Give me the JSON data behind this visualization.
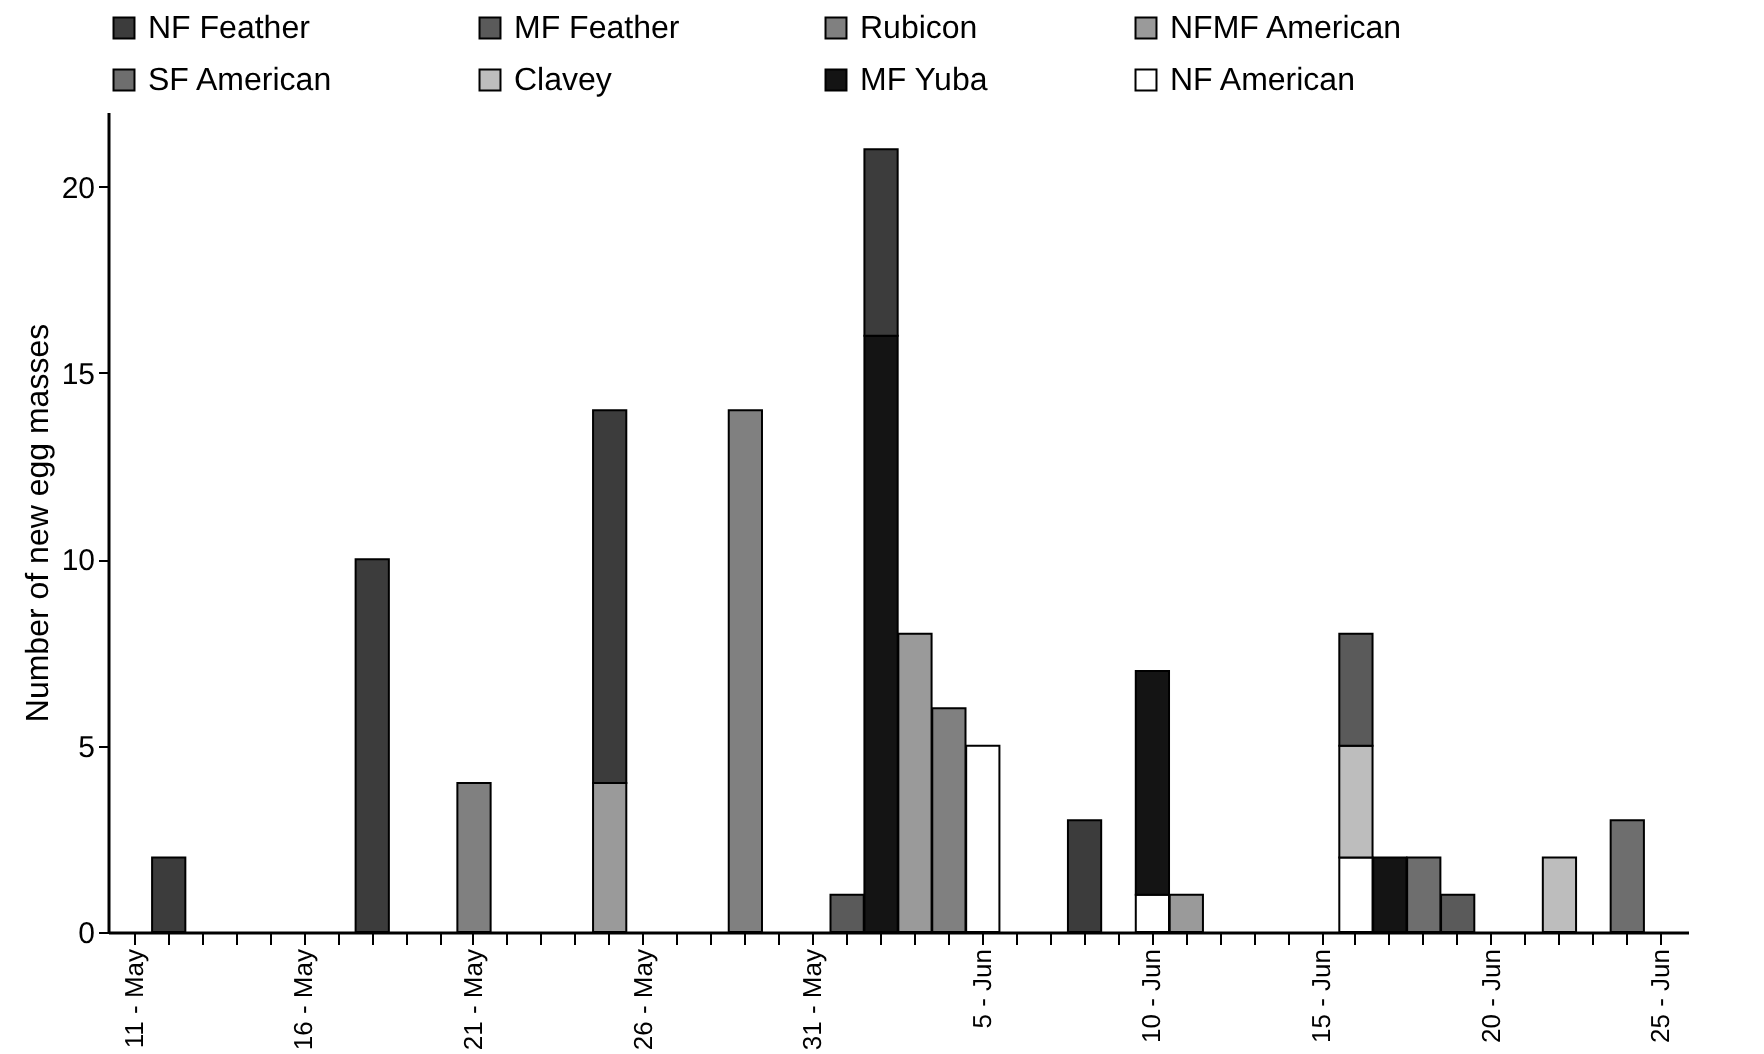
{
  "chart_data": {
    "type": "bar",
    "stacked": true,
    "ylabel": "Number of new egg masses",
    "categories": [
      "11 - May",
      null,
      null,
      null,
      null,
      "16 - May",
      null,
      null,
      null,
      null,
      "21 - May",
      null,
      null,
      null,
      null,
      "26 - May",
      null,
      null,
      null,
      null,
      "31 - May",
      null,
      null,
      null,
      null,
      "5 - Jun",
      null,
      null,
      null,
      null,
      "10 - Jun",
      null,
      null,
      null,
      null,
      "15 - Jun",
      null,
      null,
      null,
      null,
      "20 - Jun",
      null,
      null,
      null,
      null,
      "25 - Jun"
    ],
    "ylim": [
      0,
      22
    ],
    "yticks": [
      0,
      5,
      10,
      15,
      20
    ],
    "legend": "top",
    "series": [
      {
        "name": "NF American",
        "color": "#ffffff",
        "values": [
          null,
          null,
          null,
          null,
          null,
          null,
          null,
          null,
          null,
          null,
          null,
          null,
          null,
          null,
          null,
          null,
          null,
          null,
          null,
          null,
          null,
          null,
          null,
          null,
          null,
          5,
          null,
          null,
          null,
          null,
          1,
          null,
          null,
          null,
          null,
          null,
          2,
          null,
          null,
          null,
          null,
          null,
          null,
          null,
          null,
          null
        ]
      },
      {
        "name": "MF Yuba",
        "color": "#141414",
        "values": [
          null,
          null,
          null,
          null,
          null,
          null,
          null,
          null,
          null,
          null,
          null,
          null,
          null,
          null,
          null,
          null,
          null,
          null,
          null,
          null,
          null,
          null,
          16,
          null,
          null,
          null,
          null,
          null,
          null,
          null,
          6,
          null,
          null,
          null,
          null,
          null,
          null,
          2,
          null,
          null,
          null,
          null,
          null,
          null,
          null,
          null
        ]
      },
      {
        "name": "Clavey",
        "color": "#bdbdbd",
        "values": [
          null,
          null,
          null,
          null,
          null,
          null,
          null,
          null,
          null,
          null,
          null,
          null,
          null,
          null,
          null,
          null,
          null,
          null,
          null,
          null,
          null,
          null,
          null,
          null,
          null,
          null,
          null,
          null,
          null,
          null,
          null,
          null,
          null,
          null,
          null,
          null,
          3,
          null,
          null,
          null,
          null,
          null,
          2,
          null,
          null,
          null
        ]
      },
      {
        "name": "SF American",
        "color": "#6e6e6e",
        "values": [
          null,
          null,
          null,
          null,
          null,
          null,
          null,
          null,
          null,
          null,
          null,
          null,
          null,
          null,
          null,
          null,
          null,
          null,
          null,
          null,
          null,
          null,
          null,
          null,
          null,
          null,
          null,
          null,
          null,
          null,
          null,
          null,
          null,
          null,
          null,
          null,
          null,
          null,
          2,
          null,
          null,
          null,
          null,
          null,
          3,
          null
        ]
      },
      {
        "name": "NFMF American",
        "color": "#9a9a9a",
        "values": [
          null,
          null,
          null,
          null,
          null,
          null,
          null,
          null,
          null,
          null,
          null,
          null,
          null,
          null,
          4,
          null,
          null,
          null,
          null,
          null,
          null,
          null,
          null,
          8,
          null,
          null,
          null,
          null,
          null,
          null,
          null,
          1,
          null,
          null,
          null,
          null,
          null,
          null,
          null,
          null,
          null,
          null,
          null,
          null,
          null,
          null
        ]
      },
      {
        "name": "Rubicon",
        "color": "#808080",
        "values": [
          null,
          null,
          null,
          null,
          null,
          null,
          null,
          null,
          null,
          null,
          4,
          null,
          null,
          null,
          null,
          null,
          null,
          null,
          14,
          null,
          null,
          null,
          null,
          null,
          6,
          null,
          null,
          null,
          null,
          null,
          null,
          null,
          null,
          null,
          null,
          null,
          null,
          null,
          null,
          null,
          null,
          null,
          null,
          null,
          null,
          null
        ]
      },
      {
        "name": "MF Feather",
        "color": "#5a5a5a",
        "values": [
          null,
          null,
          null,
          null,
          null,
          null,
          null,
          null,
          null,
          null,
          null,
          null,
          null,
          null,
          null,
          null,
          null,
          null,
          null,
          null,
          null,
          1,
          null,
          null,
          null,
          null,
          null,
          null,
          null,
          null,
          null,
          null,
          null,
          null,
          null,
          null,
          3,
          null,
          null,
          1,
          null,
          null,
          null,
          null,
          null,
          null
        ]
      },
      {
        "name": "NF Feather",
        "color": "#3c3c3c",
        "values": [
          null,
          2,
          null,
          null,
          null,
          null,
          null,
          10,
          null,
          null,
          null,
          null,
          null,
          null,
          10,
          null,
          null,
          null,
          null,
          null,
          null,
          null,
          5,
          null,
          null,
          null,
          null,
          null,
          3,
          null,
          null,
          null,
          null,
          null,
          null,
          null,
          null,
          null,
          null,
          null,
          null,
          null,
          null,
          null,
          null,
          null
        ]
      }
    ]
  }
}
